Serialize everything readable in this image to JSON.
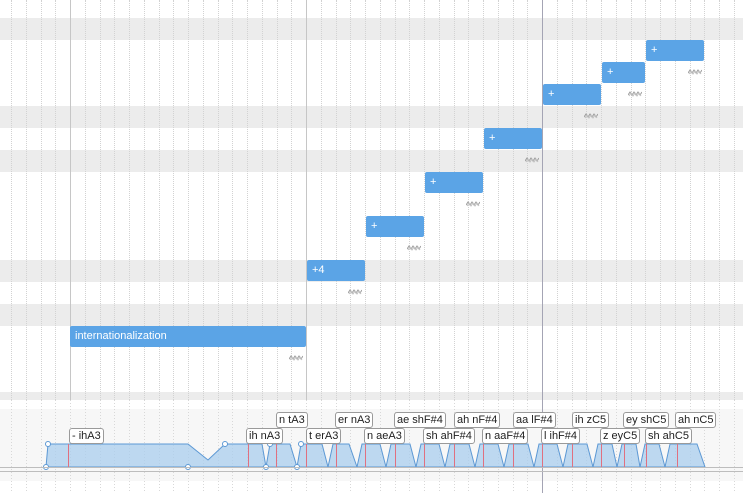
{
  "notes": [
    {
      "lyric": "internationalization",
      "label": "internationalization"
    },
    {
      "lyric": "+4",
      "label": "+4"
    },
    {
      "lyric": "+",
      "label": "+"
    },
    {
      "lyric": "+",
      "label": "+"
    },
    {
      "lyric": "+",
      "label": "+"
    },
    {
      "lyric": "+",
      "label": "+"
    },
    {
      "lyric": "+",
      "label": "+"
    },
    {
      "lyric": "+",
      "label": "+"
    }
  ],
  "phonemes_upper": [
    "n tA3",
    "er nA3",
    "ae shF#4",
    "ah nF#4",
    "aa lF#4",
    "ih zC5",
    "ey shC5",
    "ah nC5"
  ],
  "phonemes_lower": [
    "- ihA3",
    "ih nA3",
    "t erA3",
    "n aeA3",
    "sh ahF#4",
    "n aaF#4",
    "l ihF#4",
    "z eyC5",
    "sh ahC5"
  ],
  "colors": {
    "note": "#5ba4e6",
    "envelope_fill": "#a9cdee",
    "envelope_stroke": "#5c98d4",
    "phoneme_marker": "#e07080",
    "row_shade": "#ececec"
  },
  "icons": {
    "note_vibrato": "vibrato-wave-icon"
  }
}
